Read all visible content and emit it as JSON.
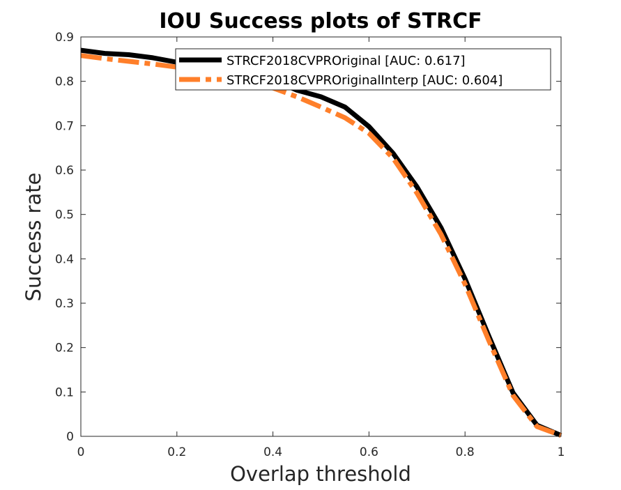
{
  "chart_data": {
    "type": "line",
    "title": "IOU Success plots of STRCF",
    "xlabel": "Overlap threshold",
    "ylabel": "Success rate",
    "xlim": [
      0,
      1
    ],
    "ylim": [
      0,
      0.9
    ],
    "xticks": [
      "0",
      "0.2",
      "0.4",
      "0.6",
      "0.8",
      "1"
    ],
    "yticks": [
      "0",
      "0.1",
      "0.2",
      "0.3",
      "0.4",
      "0.5",
      "0.6",
      "0.7",
      "0.8",
      "0.9"
    ],
    "grid": false,
    "legend_position": "top-right",
    "x": [
      0,
      0.05,
      0.1,
      0.15,
      0.2,
      0.25,
      0.3,
      0.35,
      0.4,
      0.45,
      0.5,
      0.55,
      0.6,
      0.65,
      0.7,
      0.75,
      0.8,
      0.85,
      0.9,
      0.95,
      1.0
    ],
    "series": [
      {
        "name": "STRCF2018CVPROriginal [AUC: 0.617]",
        "color": "#000000",
        "style": "solid",
        "values": [
          0.87,
          0.863,
          0.86,
          0.853,
          0.843,
          0.835,
          0.828,
          0.818,
          0.803,
          0.78,
          0.765,
          0.742,
          0.698,
          0.638,
          0.562,
          0.47,
          0.355,
          0.225,
          0.098,
          0.025,
          0.002
        ]
      },
      {
        "name": "STRCF2018CVPROriginalInterp [AUC: 0.604]",
        "color": "#ff7f2a",
        "style": "dashed",
        "values": [
          0.858,
          0.851,
          0.845,
          0.839,
          0.832,
          0.824,
          0.816,
          0.804,
          0.785,
          0.765,
          0.742,
          0.718,
          0.683,
          0.627,
          0.548,
          0.455,
          0.343,
          0.215,
          0.092,
          0.022,
          0.002
        ]
      }
    ]
  }
}
